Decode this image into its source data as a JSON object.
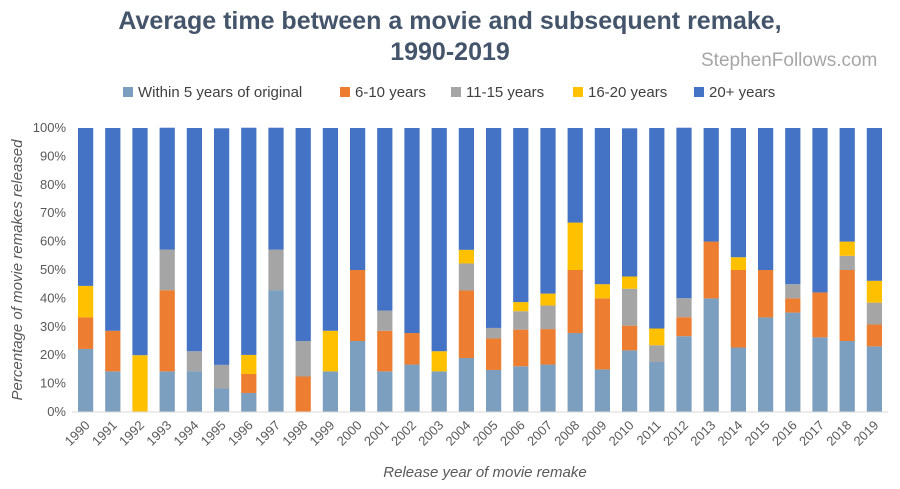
{
  "watermark": "StephenFollows.com",
  "chart_data": {
    "type": "bar",
    "stacked": true,
    "title": "Average time between a movie and subsequent remake, 1990-2019",
    "title_lines": [
      "Average time between a movie and subsequent remake,",
      "1990-2019"
    ],
    "xlabel": "Release year of movie remake",
    "ylabel": "Percentage of movie remakes released",
    "ylim": [
      0,
      100
    ],
    "yticks": [
      0,
      10,
      20,
      30,
      40,
      50,
      60,
      70,
      80,
      90,
      100
    ],
    "ytick_labels": [
      "0%",
      "10%",
      "20%",
      "30%",
      "40%",
      "50%",
      "60%",
      "70%",
      "80%",
      "90%",
      "100%"
    ],
    "grid": false,
    "legend_position": "top",
    "categories": [
      "1990",
      "1991",
      "1992",
      "1993",
      "1994",
      "1995",
      "1996",
      "1997",
      "1998",
      "1999",
      "2000",
      "2001",
      "2002",
      "2003",
      "2004",
      "2005",
      "2006",
      "2007",
      "2008",
      "2009",
      "2010",
      "2011",
      "2012",
      "2013",
      "2014",
      "2015",
      "2016",
      "2017",
      "2018",
      "2019"
    ],
    "series": [
      {
        "name": "Within 5 years of original",
        "color": "#7c9ebf",
        "values": [
          22.2,
          14.3,
          0,
          14.3,
          14.3,
          8.3,
          6.7,
          42.9,
          0,
          14.3,
          25,
          14.3,
          16.7,
          14.3,
          19,
          14.8,
          16.1,
          16.7,
          27.8,
          15,
          21.7,
          17.6,
          26.7,
          40,
          22.7,
          33.3,
          35,
          26.3,
          25,
          23.1
        ]
      },
      {
        "name": "6-10 years",
        "color": "#ed7d31",
        "values": [
          11.1,
          14.3,
          0,
          28.6,
          0,
          0,
          6.7,
          0,
          12.5,
          0,
          25,
          14.3,
          11.1,
          0,
          23.8,
          11.1,
          12.9,
          12.5,
          22.2,
          25,
          8.7,
          0,
          6.7,
          20,
          27.3,
          16.7,
          5,
          15.8,
          25,
          7.7
        ]
      },
      {
        "name": "11-15 years",
        "color": "#a5a5a5",
        "values": [
          0,
          0,
          0,
          14.3,
          7.1,
          8.3,
          0,
          14.3,
          12.5,
          0,
          0,
          7.1,
          0,
          0,
          9.5,
          3.7,
          6.5,
          8.3,
          0,
          0,
          13,
          5.9,
          6.7,
          0,
          0,
          0,
          5,
          0,
          5,
          7.7
        ]
      },
      {
        "name": "16-20 years",
        "color": "#ffc000",
        "values": [
          11.1,
          0,
          20,
          0,
          0,
          0,
          6.7,
          0,
          0,
          14.3,
          0,
          0,
          0,
          7.1,
          4.8,
          0,
          3.2,
          4.2,
          16.7,
          5,
          4.3,
          5.9,
          0,
          0,
          4.5,
          0,
          0,
          0,
          5,
          7.7
        ]
      },
      {
        "name": "20+ years",
        "color": "#4472c4",
        "values": [
          55.6,
          71.4,
          80,
          42.9,
          78.6,
          83.3,
          80,
          42.9,
          75,
          71.4,
          50,
          64.3,
          72.2,
          78.6,
          42.9,
          70.4,
          61.3,
          58.3,
          33.3,
          55,
          52.2,
          70.6,
          60,
          40,
          45.5,
          50,
          55,
          57.9,
          40,
          53.8
        ]
      }
    ]
  }
}
